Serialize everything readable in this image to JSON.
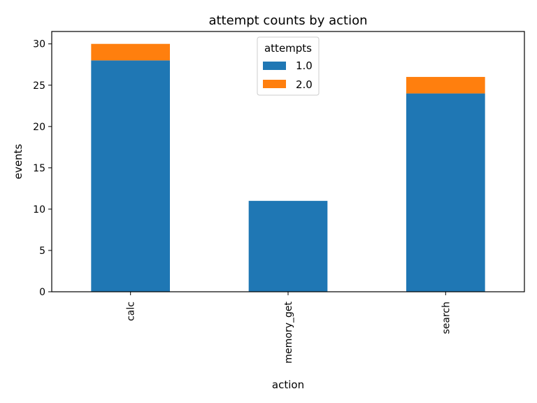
{
  "chart_data": {
    "type": "bar",
    "stacked": true,
    "title": "attempt counts by action",
    "xlabel": "action",
    "ylabel": "events",
    "categories": [
      "calc",
      "memory_get",
      "search"
    ],
    "series": [
      {
        "name": "1.0",
        "values": [
          28,
          11,
          24
        ],
        "color": "#1f77b4"
      },
      {
        "name": "2.0",
        "values": [
          2,
          0,
          2
        ],
        "color": "#ff7f0e"
      }
    ],
    "ylim": [
      0,
      31.5
    ],
    "yticks": [
      0,
      5,
      10,
      15,
      20,
      25,
      30
    ],
    "grid": false,
    "legend": {
      "title": "attempts",
      "placement": "upper center"
    }
  }
}
